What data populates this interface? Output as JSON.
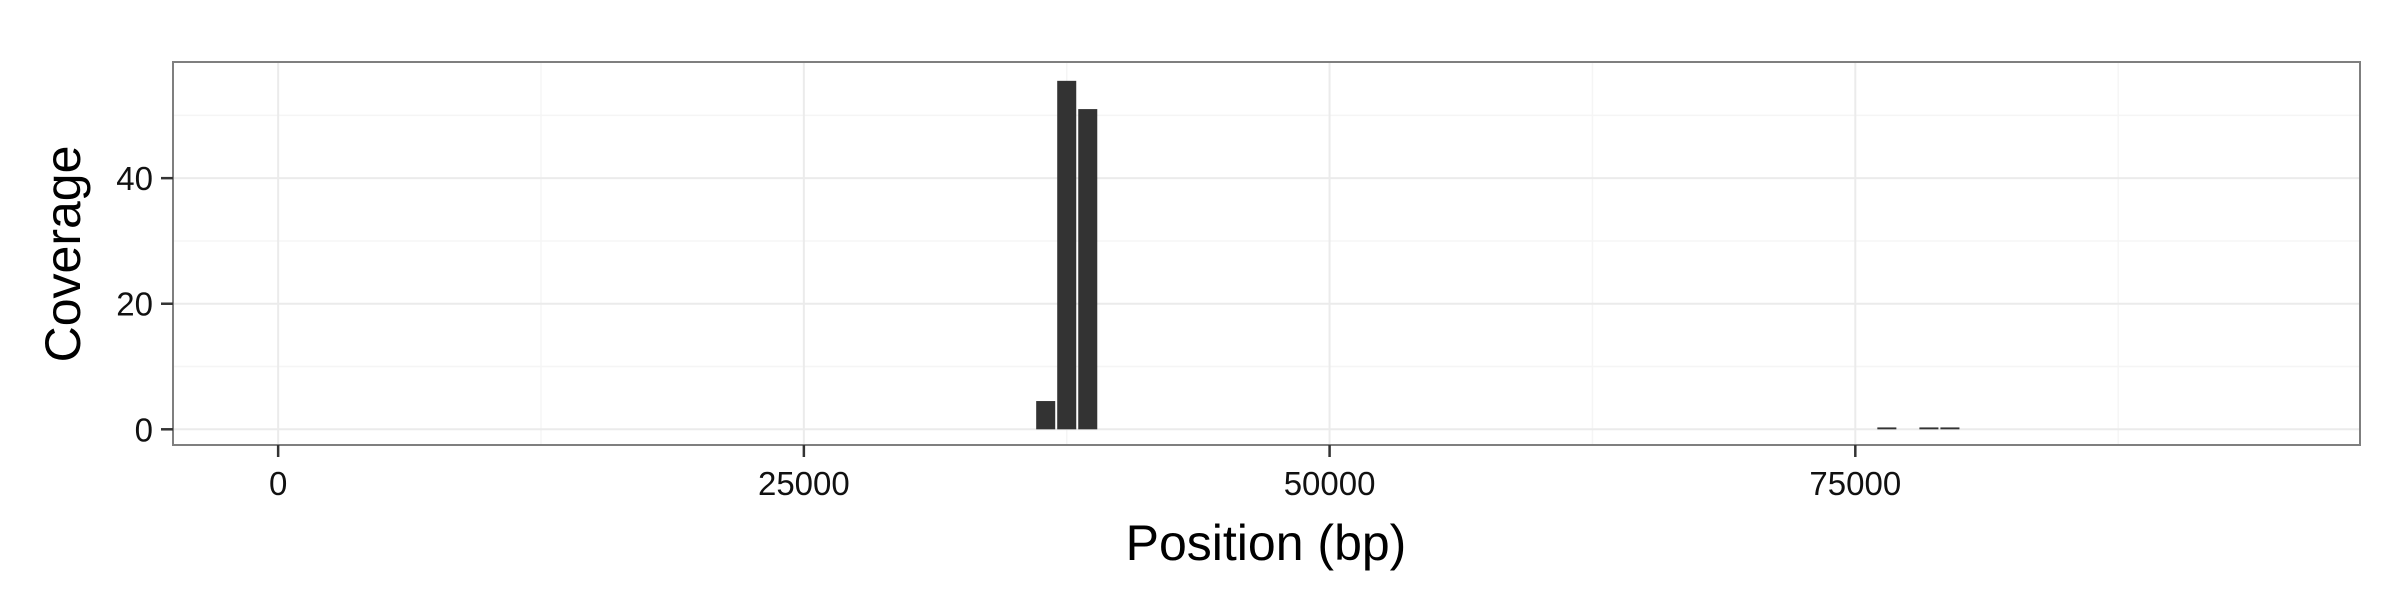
{
  "chart_data": {
    "type": "bar",
    "title": "",
    "xlabel": "Position (bp)",
    "ylabel": "Coverage",
    "xlim": [
      -5000,
      99000
    ],
    "ylim": [
      -2.5,
      58.5
    ],
    "xticks": [
      0,
      25000,
      50000,
      75000
    ],
    "xtick_labels": [
      "0",
      "25000",
      "50000",
      "75000"
    ],
    "yticks": [
      0,
      20,
      40
    ],
    "ytick_labels": [
      "0",
      "20",
      "40"
    ],
    "grid": true,
    "legend": "none",
    "bin_width": 1000,
    "bars": [
      {
        "x": 36500,
        "y": 4.5
      },
      {
        "x": 37500,
        "y": 55.5
      },
      {
        "x": 38500,
        "y": 51
      },
      {
        "x": 76500,
        "y": 0.3
      },
      {
        "x": 78500,
        "y": 0.3
      },
      {
        "x": 79500,
        "y": 0.3
      }
    ],
    "colors": {
      "bar_fill": "#333333",
      "panel_border": "#7f7f7f",
      "grid_major": "#ebebeb",
      "grid_minor": "#f5f5f5"
    }
  }
}
